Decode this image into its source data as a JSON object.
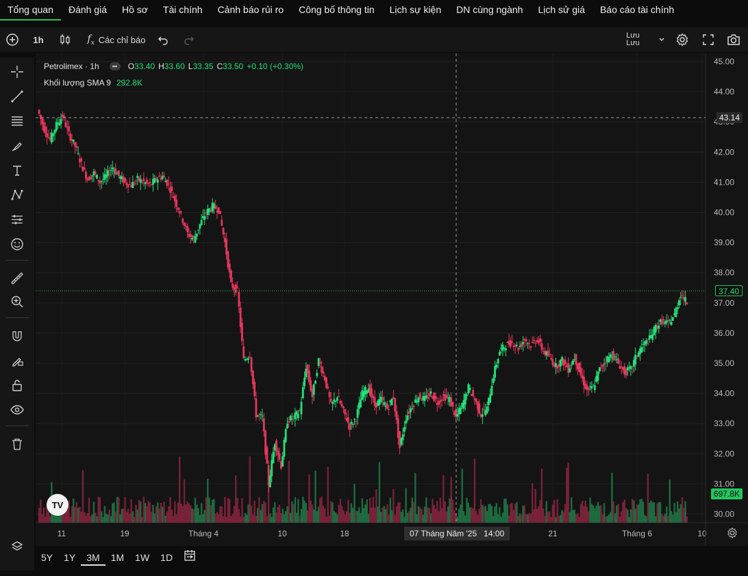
{
  "nav": {
    "tabs": [
      "Tổng quan",
      "Đánh giá",
      "Hồ sơ",
      "Tài chính",
      "Cảnh báo rủi ro",
      "Công bố thông tin",
      "Lịch sự kiện",
      "DN cùng ngành",
      "Lịch sử giá",
      "Báo cáo tài chính"
    ],
    "active_index": 0
  },
  "toolbar": {
    "interval": "1h",
    "indicators_label": "Các chỉ báo",
    "save_label": "Lưu",
    "save_sub": "Lưu"
  },
  "legend": {
    "symbol": "Petrolimex · 1h",
    "o_label": "O",
    "o_value": "33.40",
    "h_label": "H",
    "h_value": "33.60",
    "l_label": "L",
    "l_value": "33.35",
    "c_label": "C",
    "c_value": "33.50",
    "change": "+0.10 (+0.30%)",
    "volume_label": "Khối lượng SMA 9",
    "volume_value": "292.8K"
  },
  "badges": {
    "crosshair_price": "43.14",
    "last_price": "37.40",
    "last_volume": "697.8K",
    "crosshair_time": "07 Tháng Năm '25",
    "crosshair_hour": "14:00"
  },
  "range_buttons": [
    "5Y",
    "1Y",
    "3M",
    "1M",
    "1W",
    "1D"
  ],
  "range_active": "3M",
  "colors": {
    "up": "#22e27a",
    "down": "#e8365d",
    "crosshair": "#9e9e9e",
    "last_price": "#22c55e"
  },
  "chart_data": {
    "type": "candlestick",
    "title": "Petrolimex · 1h",
    "ylim": [
      29.7,
      45.3
    ],
    "y_ticks": [
      "45.00",
      "44.00",
      "43.00",
      "42.00",
      "41.00",
      "40.00",
      "39.00",
      "38.00",
      "37.00",
      "36.00",
      "35.00",
      "34.00",
      "33.00",
      "32.00",
      "31.00",
      "30.00"
    ],
    "x_ticks": [
      "11",
      "19",
      "Tháng 4",
      "10",
      "18",
      "21",
      "Tháng 6",
      "10"
    ],
    "crosshair_price": 43.14,
    "last_price": 37.4,
    "series": [
      {
        "name": "price_trajectory",
        "points": [
          [
            0,
            43.4
          ],
          [
            4,
            42.8
          ],
          [
            8,
            42.4
          ],
          [
            12,
            42.9
          ],
          [
            16,
            43.2
          ],
          [
            20,
            42.6
          ],
          [
            24,
            42.2
          ],
          [
            28,
            41.6
          ],
          [
            32,
            41.1
          ],
          [
            36,
            41.3
          ],
          [
            40,
            41.0
          ],
          [
            44,
            41.2
          ],
          [
            48,
            41.5
          ],
          [
            52,
            41.2
          ],
          [
            56,
            41.0
          ],
          [
            60,
            40.9
          ],
          [
            64,
            41.1
          ],
          [
            68,
            41.0
          ],
          [
            72,
            40.9
          ],
          [
            76,
            41.1
          ],
          [
            80,
            41.2
          ],
          [
            84,
            40.9
          ],
          [
            88,
            40.4
          ],
          [
            92,
            39.9
          ],
          [
            96,
            39.3
          ],
          [
            100,
            39.1
          ],
          [
            104,
            39.6
          ],
          [
            108,
            40.0
          ],
          [
            112,
            40.2
          ],
          [
            116,
            40.1
          ],
          [
            120,
            39.0
          ],
          [
            124,
            37.6
          ],
          [
            128,
            37.4
          ],
          [
            132,
            35.1
          ],
          [
            136,
            35.3
          ],
          [
            140,
            33.3
          ],
          [
            144,
            33.2
          ],
          [
            148,
            31.0
          ],
          [
            152,
            32.4
          ],
          [
            156,
            31.6
          ],
          [
            160,
            33.1
          ],
          [
            164,
            33.2
          ],
          [
            168,
            33.4
          ],
          [
            172,
            34.9
          ],
          [
            176,
            33.9
          ],
          [
            180,
            35.1
          ],
          [
            184,
            34.5
          ],
          [
            188,
            33.6
          ],
          [
            192,
            33.9
          ],
          [
            196,
            33.4
          ],
          [
            200,
            32.9
          ],
          [
            204,
            33.2
          ],
          [
            208,
            34.0
          ],
          [
            212,
            34.2
          ],
          [
            216,
            33.6
          ],
          [
            220,
            33.8
          ],
          [
            224,
            33.5
          ],
          [
            228,
            33.9
          ],
          [
            232,
            32.2
          ],
          [
            236,
            33.2
          ],
          [
            240,
            33.6
          ],
          [
            244,
            33.9
          ],
          [
            248,
            33.8
          ],
          [
            252,
            34.0
          ],
          [
            256,
            33.7
          ],
          [
            260,
            33.9
          ],
          [
            264,
            33.8
          ],
          [
            268,
            33.2
          ],
          [
            272,
            33.6
          ],
          [
            276,
            34.2
          ],
          [
            280,
            33.8
          ],
          [
            284,
            33.3
          ],
          [
            288,
            33.5
          ],
          [
            292,
            34.6
          ],
          [
            296,
            35.4
          ],
          [
            300,
            35.6
          ],
          [
            304,
            35.7
          ],
          [
            308,
            35.5
          ],
          [
            312,
            35.8
          ],
          [
            316,
            35.6
          ],
          [
            320,
            35.8
          ],
          [
            324,
            35.4
          ],
          [
            328,
            35.2
          ],
          [
            332,
            34.9
          ],
          [
            336,
            35.1
          ],
          [
            340,
            34.8
          ],
          [
            344,
            35.2
          ],
          [
            348,
            34.6
          ],
          [
            352,
            34.1
          ],
          [
            356,
            34.2
          ],
          [
            360,
            34.8
          ],
          [
            364,
            35.1
          ],
          [
            368,
            35.3
          ],
          [
            372,
            35.0
          ],
          [
            376,
            34.7
          ],
          [
            380,
            34.8
          ],
          [
            384,
            35.3
          ],
          [
            388,
            35.6
          ],
          [
            392,
            35.8
          ],
          [
            396,
            36.2
          ],
          [
            400,
            36.4
          ],
          [
            404,
            36.3
          ],
          [
            408,
            36.6
          ],
          [
            412,
            37.3
          ],
          [
            416,
            37.0
          ]
        ]
      }
    ]
  }
}
